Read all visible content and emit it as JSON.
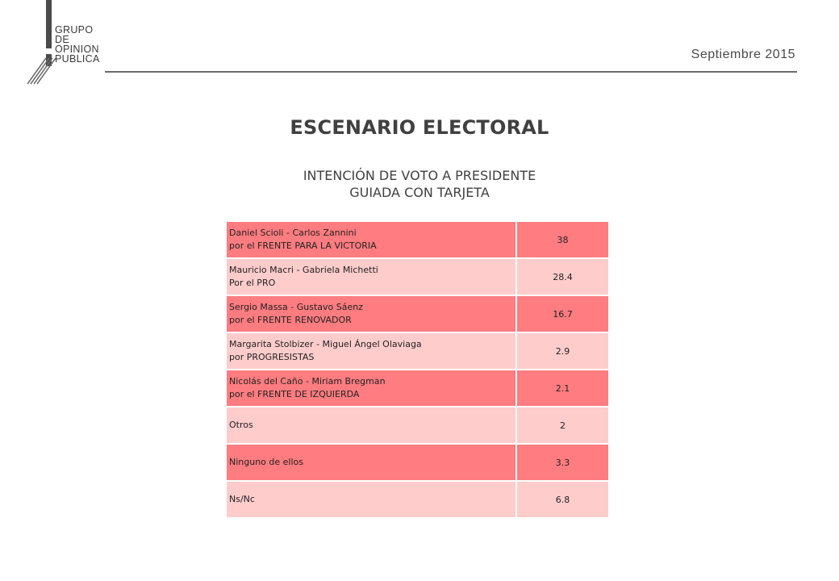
{
  "logo": {
    "lines": [
      "GRUPO",
      "DE",
      "OPINION",
      "PUBLICA"
    ]
  },
  "header": {
    "date": "Septiembre 2015"
  },
  "title": "ESCENARIO ELECTORAL",
  "subtitle": {
    "line1": "INTENCIÓN DE VOTO A PRESIDENTE",
    "line2": "GUIADA CON TARJETA"
  },
  "table": {
    "rows": [
      {
        "line1": "Daniel Scioli - Carlos Zannini",
        "line2": "por el FRENTE PARA LA VICTORIA",
        "value": "38"
      },
      {
        "line1": "Mauricio Macri - Gabriela Michetti",
        "line2": "Por el PRO",
        "value": "28.4"
      },
      {
        "line1": "Sergio Massa - Gustavo Sáenz",
        "line2": "por el  FRENTE RENOVADOR",
        "value": "16.7"
      },
      {
        "line1": "Margarita Stolbizer - Miguel Ángel Olaviaga",
        "line2": "por  PROGRESISTAS",
        "value": "2.9"
      },
      {
        "line1": "Nicolás del Caño - Miriam Bregman",
        "line2": "por el FRENTE DE IZQUIERDA",
        "value": "2.1"
      },
      {
        "line1": "Otros",
        "line2": "",
        "value": "2"
      },
      {
        "line1": "Ninguno de ellos",
        "line2": "",
        "value": "3.3"
      },
      {
        "line1": "Ns/Nc",
        "line2": "",
        "value": "6.8"
      }
    ]
  },
  "colors": {
    "row_dark": "#ff7c80",
    "row_light": "#ffcccc",
    "text": "#404040"
  }
}
